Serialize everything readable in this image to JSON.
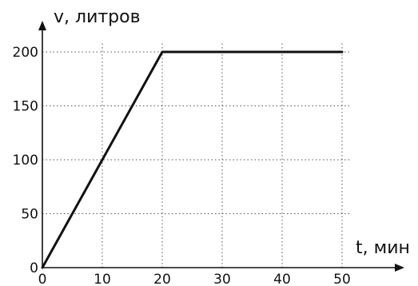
{
  "chart_data": {
    "type": "line",
    "xlabel": "t, мин",
    "ylabel": "v, литров",
    "x_ticks": [
      "0",
      "10",
      "20",
      "30",
      "40",
      "50"
    ],
    "y_ticks": [
      "0",
      "50",
      "100",
      "150",
      "200"
    ],
    "xlim": [
      0,
      50
    ],
    "ylim": [
      0,
      200
    ],
    "grid": true,
    "series": [
      {
        "x": [
          0,
          20,
          50
        ],
        "y": [
          0,
          200,
          200
        ]
      }
    ]
  }
}
